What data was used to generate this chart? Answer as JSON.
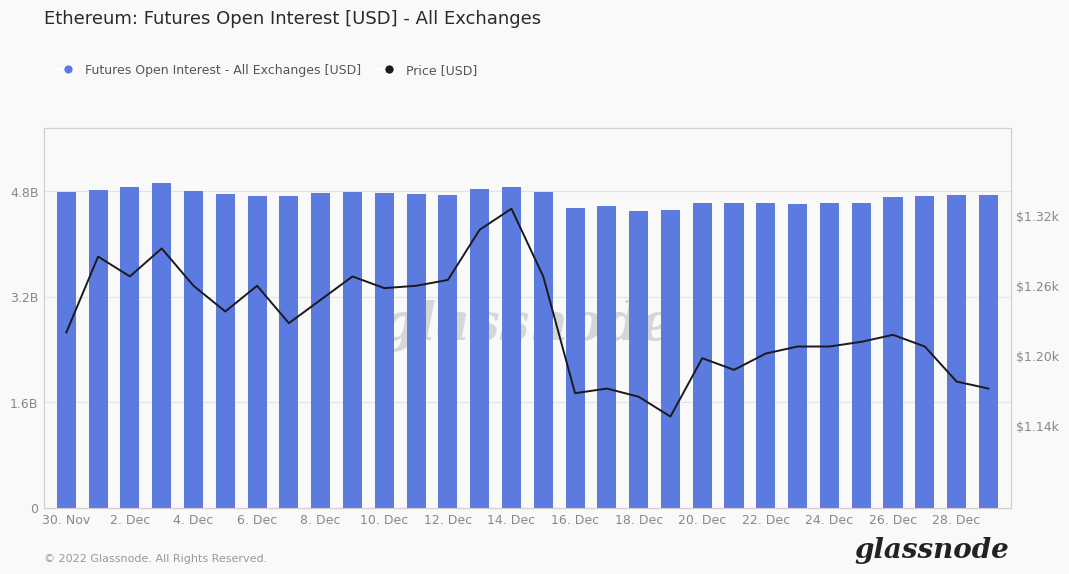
{
  "title": "Ethereum: Futures Open Interest [USD] - All Exchanges",
  "legend_bar": "Futures Open Interest - All Exchanges [USD]",
  "legend_line": "Price [USD]",
  "footer": "© 2022 Glassnode. All Rights Reserved.",
  "watermark": "glassnode",
  "bar_color": "#5c7be0",
  "line_color": "#1a1a1a",
  "bg_color": "#f9f9f9",
  "plot_bg": "#f9f9f9",
  "x_labels": [
    "30. Nov",
    "2. Dec",
    "4. Dec",
    "6. Dec",
    "8. Dec",
    "10. Dec",
    "12. Dec",
    "14. Dec",
    "16. Dec",
    "18. Dec",
    "20. Dec",
    "22. Dec",
    "24. Dec",
    "26. Dec",
    "28. Dec"
  ],
  "x_tick_pos": [
    0,
    2,
    4,
    6,
    8,
    10,
    12,
    14,
    16,
    18,
    20,
    22,
    24,
    26,
    28
  ],
  "bar_values": [
    4.79,
    4.82,
    4.87,
    4.93,
    4.8,
    4.76,
    4.73,
    4.73,
    4.77,
    4.79,
    4.77,
    4.76,
    4.75,
    4.83,
    4.86,
    4.79,
    4.55,
    4.58,
    4.5,
    4.52,
    4.62,
    4.62,
    4.62,
    4.61,
    4.62,
    4.62,
    4.71,
    4.73,
    4.74,
    4.74
  ],
  "price_values": [
    1.22,
    1.285,
    1.268,
    1.292,
    1.26,
    1.238,
    1.26,
    1.228,
    1.248,
    1.268,
    1.258,
    1.26,
    1.265,
    1.308,
    1.326,
    1.268,
    1.168,
    1.172,
    1.165,
    1.148,
    1.198,
    1.188,
    1.202,
    1.208,
    1.208,
    1.212,
    1.218,
    1.208,
    1.178,
    1.172
  ],
  "ylim_left": [
    0,
    5.76
  ],
  "ylim_right": [
    1.07,
    1.395
  ],
  "yticks_left": [
    0,
    1.6,
    3.2,
    4.8
  ],
  "yticks_right": [
    1.14,
    1.2,
    1.26,
    1.32
  ],
  "ytick_labels_left": [
    "0",
    "1.6B",
    "3.2B",
    "4.8B"
  ],
  "ytick_labels_right": [
    "$1.14k",
    "$1.20k",
    "$1.26k",
    "$1.32k"
  ],
  "title_fontsize": 13,
  "tick_fontsize": 9,
  "grid_color": "#e5e5e5",
  "border_color": "#d0d0d0",
  "bar_width": 0.6
}
